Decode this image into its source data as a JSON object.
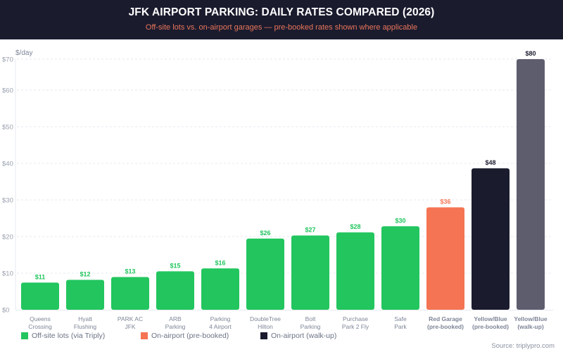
{
  "header": {
    "title": "JFK AIRPORT PARKING: DAILY RATES COMPARED (2026)",
    "subtitle": "Off-site lots vs. on-airport garages — pre-booked rates shown where applicable"
  },
  "legend": [
    {
      "label": "Off-site lots (via Triply)",
      "color": "#22c55e"
    },
    {
      "label": "On-airport (pre-booked)",
      "color": "#f47453"
    },
    {
      "label": "On-airport (walk-up)",
      "color": "#1b1b2e"
    }
  ],
  "source": "Source: triplypro.com",
  "chart_data": {
    "type": "bar",
    "title": "JFK AIRPORT PARKING: DAILY RATES COMPARED (2026)",
    "subtitle": "Off-site lots vs. on-airport garages — pre-booked rates shown where applicable",
    "ylabel": "$/day",
    "xlabel": "",
    "ylim": [
      0,
      70
    ],
    "yticks": [
      "$0",
      "$10",
      "$20",
      "$30",
      "$40",
      "$50",
      "$60",
      "$70"
    ],
    "grid": true,
    "legend_position": "bottom-left",
    "categories": [
      [
        "Queens",
        "Crossing"
      ],
      [
        "Hyatt",
        "Flushing"
      ],
      [
        "PARK AC",
        "JFK"
      ],
      [
        "ARB",
        "Parking"
      ],
      [
        "Parking",
        "4 Airport"
      ],
      [
        "DoubleTree",
        "Hilton"
      ],
      [
        "Bolt",
        "Parking"
      ],
      [
        "Purchase",
        "Park 2 Fly"
      ],
      [
        "Safe",
        "Park"
      ],
      [
        "Red Garage",
        "(pre-booked)"
      ],
      [
        "Yellow/Blue",
        "(pre-booked)"
      ],
      [
        "Yellow/Blue",
        "(walk-up)"
      ]
    ],
    "values": [
      11,
      12,
      13,
      15,
      16,
      26,
      27,
      28,
      30,
      36,
      48,
      80
    ],
    "value_labels": [
      "$11",
      "$12",
      "$13",
      "$15",
      "$16",
      "$26",
      "$27",
      "$28",
      "$30",
      "$36",
      "$48",
      "$80"
    ],
    "groups": [
      "offsite",
      "offsite",
      "offsite",
      "offsite",
      "offsite",
      "offsite",
      "offsite",
      "offsite",
      "offsite",
      "prebooked",
      "walkup_dark",
      "walkup"
    ],
    "group_colors": {
      "offsite": "#22c55e",
      "prebooked": "#f47453",
      "walkup_dark": "#1b1b2e",
      "walkup": "#5e5d6e"
    },
    "label_colors": {
      "offsite": "#22c55e",
      "prebooked": "#f47453",
      "walkup_dark": "#1b1b2e",
      "walkup": "#1b1b2e"
    },
    "category_label_colors": {
      "offsite": "#7d8596",
      "prebooked": "#f47453",
      "walkup_dark": "#1b1b2e",
      "walkup": "#1b1b2e"
    }
  }
}
